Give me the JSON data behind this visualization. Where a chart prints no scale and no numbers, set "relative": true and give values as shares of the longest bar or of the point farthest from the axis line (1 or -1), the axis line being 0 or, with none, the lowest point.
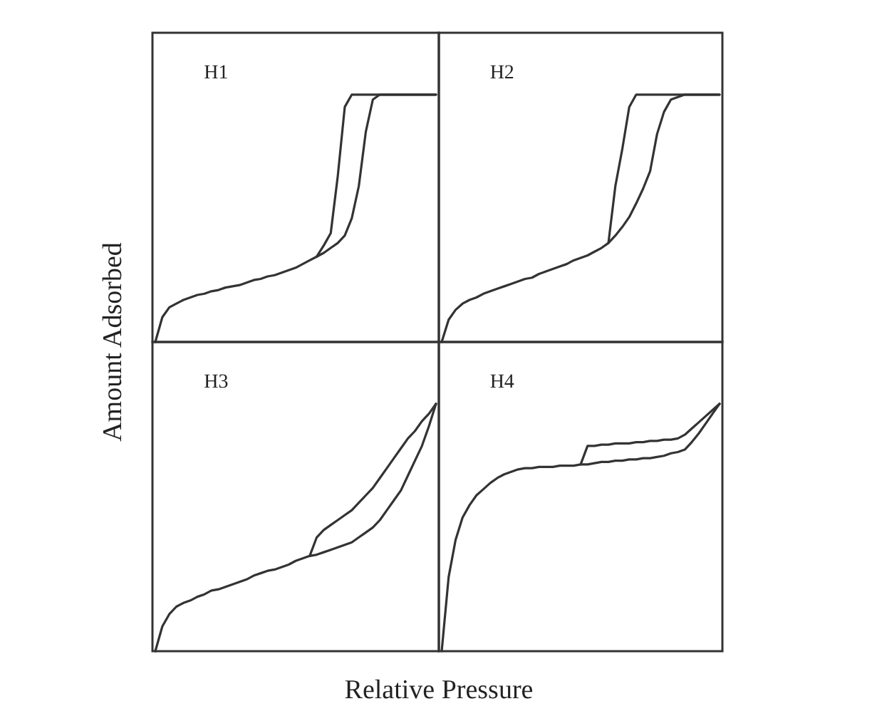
{
  "chart_data": [
    {
      "type": "line",
      "title": "H1",
      "ylabel": "Amount Adsorbed",
      "relative": true,
      "categories": [
        null,
        null,
        null,
        null,
        null,
        null,
        null,
        null,
        null,
        null,
        null,
        null,
        null,
        null,
        null,
        null,
        null,
        null,
        null,
        null,
        null,
        null,
        null,
        null,
        null,
        null,
        null,
        null,
        null,
        null,
        null,
        null,
        null,
        null,
        null,
        null,
        null,
        null,
        null,
        null,
        null
      ],
      "marker": "none",
      "line_style": "solid",
      "series": [
        {
          "color": "#333333",
          "values": [
            0,
            0.1,
            0.14,
            0.155,
            0.17,
            0.18,
            0.19,
            0.195,
            0.205,
            0.21,
            0.22,
            0.225,
            0.23,
            0.24,
            0.25,
            0.255,
            0.265,
            0.27,
            0.28,
            0.29,
            0.3,
            0.315,
            0.33,
            0.345,
            0.36,
            0.38,
            0.4,
            0.43,
            0.5,
            0.63,
            0.85,
            0.98,
            1,
            1,
            1,
            1,
            1,
            1,
            1,
            1,
            1
          ]
        },
        {
          "color": "#333333",
          "values": [
            null,
            null,
            null,
            null,
            null,
            null,
            null,
            null,
            null,
            null,
            null,
            null,
            null,
            null,
            null,
            null,
            null,
            null,
            null,
            null,
            null,
            null,
            null,
            0.345,
            0.39,
            0.44,
            0.67,
            0.95,
            1,
            1,
            1,
            1,
            1,
            1,
            1,
            1,
            1,
            1,
            1,
            1,
            1
          ]
        }
      ]
    },
    {
      "type": "line",
      "title": "H2",
      "relative": true,
      "categories": [
        null,
        null,
        null,
        null,
        null,
        null,
        null,
        null,
        null,
        null,
        null,
        null,
        null,
        null,
        null,
        null,
        null,
        null,
        null,
        null,
        null,
        null,
        null,
        null,
        null,
        null,
        null,
        null,
        null,
        null,
        null,
        null,
        null,
        null,
        null,
        null,
        null,
        null,
        null,
        null,
        null
      ],
      "marker": "none",
      "line_style": "solid",
      "series": [
        {
          "color": "#333333",
          "values": [
            0,
            0.09,
            0.13,
            0.155,
            0.17,
            0.18,
            0.195,
            0.205,
            0.215,
            0.225,
            0.235,
            0.245,
            0.255,
            0.26,
            0.275,
            0.285,
            0.295,
            0.305,
            0.315,
            0.33,
            0.34,
            0.35,
            0.365,
            0.38,
            0.4,
            0.43,
            0.465,
            0.505,
            0.56,
            0.62,
            0.69,
            0.84,
            0.93,
            0.98,
            0.99,
            1,
            1,
            1,
            1,
            1,
            1
          ]
        },
        {
          "color": "#333333",
          "values": [
            null,
            null,
            null,
            null,
            null,
            null,
            null,
            null,
            null,
            null,
            null,
            null,
            null,
            null,
            null,
            null,
            null,
            null,
            null,
            null,
            null,
            null,
            null,
            null,
            0.4,
            0.63,
            0.78,
            0.95,
            1,
            1,
            1,
            1,
            1,
            1,
            1,
            1,
            1,
            1,
            1,
            1,
            1
          ]
        }
      ]
    },
    {
      "type": "line",
      "title": "H3",
      "xlabel": "Relative Pressure",
      "relative": true,
      "categories": [
        null,
        null,
        null,
        null,
        null,
        null,
        null,
        null,
        null,
        null,
        null,
        null,
        null,
        null,
        null,
        null,
        null,
        null,
        null,
        null,
        null,
        null,
        null,
        null,
        null,
        null,
        null,
        null,
        null,
        null,
        null,
        null,
        null,
        null,
        null,
        null,
        null,
        null,
        null,
        null,
        null
      ],
      "marker": "none",
      "line_style": "solid",
      "series": [
        {
          "color": "#333333",
          "values": [
            0,
            0.1,
            0.15,
            0.18,
            0.195,
            0.205,
            0.22,
            0.23,
            0.245,
            0.25,
            0.26,
            0.27,
            0.28,
            0.29,
            0.305,
            0.315,
            0.325,
            0.33,
            0.34,
            0.35,
            0.365,
            0.375,
            0.385,
            0.39,
            0.4,
            0.41,
            0.42,
            0.43,
            0.44,
            0.46,
            0.48,
            0.5,
            0.53,
            0.57,
            0.61,
            0.65,
            0.71,
            0.77,
            0.83,
            0.91,
            1
          ]
        },
        {
          "color": "#333333",
          "values": [
            null,
            null,
            null,
            null,
            null,
            null,
            null,
            null,
            null,
            null,
            null,
            null,
            null,
            null,
            null,
            null,
            null,
            null,
            null,
            null,
            null,
            null,
            0.385,
            0.46,
            0.49,
            0.51,
            0.53,
            0.55,
            0.57,
            0.6,
            0.63,
            0.66,
            0.7,
            0.74,
            0.78,
            0.82,
            0.86,
            0.89,
            0.93,
            0.96,
            1
          ]
        }
      ]
    },
    {
      "type": "line",
      "title": "H4",
      "relative": true,
      "categories": [
        null,
        null,
        null,
        null,
        null,
        null,
        null,
        null,
        null,
        null,
        null,
        null,
        null,
        null,
        null,
        null,
        null,
        null,
        null,
        null,
        null,
        null,
        null,
        null,
        null,
        null,
        null,
        null,
        null,
        null,
        null,
        null,
        null,
        null,
        null,
        null,
        null,
        null,
        null,
        null,
        null
      ],
      "marker": "none",
      "line_style": "solid",
      "series": [
        {
          "color": "#333333",
          "values": [
            0,
            0.3,
            0.45,
            0.54,
            0.59,
            0.63,
            0.655,
            0.68,
            0.7,
            0.715,
            0.725,
            0.735,
            0.74,
            0.74,
            0.745,
            0.745,
            0.745,
            0.75,
            0.75,
            0.75,
            0.755,
            0.755,
            0.76,
            0.765,
            0.765,
            0.77,
            0.77,
            0.775,
            0.775,
            0.78,
            0.78,
            0.785,
            0.79,
            0.8,
            0.805,
            0.815,
            0.845,
            0.88,
            0.92,
            0.96,
            1
          ]
        },
        {
          "color": "#333333",
          "values": [
            null,
            null,
            null,
            null,
            null,
            null,
            null,
            null,
            null,
            null,
            null,
            null,
            null,
            null,
            null,
            null,
            null,
            null,
            null,
            null,
            0.755,
            0.83,
            0.83,
            0.835,
            0.835,
            0.84,
            0.84,
            0.84,
            0.845,
            0.845,
            0.85,
            0.85,
            0.855,
            0.855,
            0.86,
            0.875,
            0.9,
            0.925,
            0.95,
            0.975,
            1
          ]
        }
      ]
    }
  ]
}
